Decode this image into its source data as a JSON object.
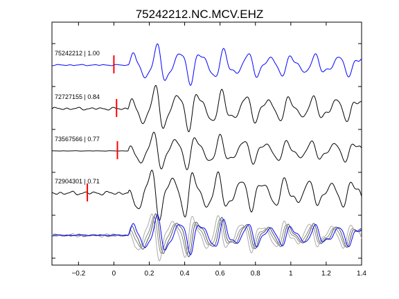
{
  "chart_data": {
    "type": "line",
    "title": "75242212.NC.MCV.EHZ",
    "xlabel": "",
    "ylabel": "",
    "xlim": [
      -0.35,
      1.4
    ],
    "xticks": [
      -0.2,
      0,
      0.2,
      0.4,
      0.6,
      0.8,
      1,
      1.2,
      1.4
    ],
    "xtick_labels": [
      "−0.2",
      "0",
      "0.2",
      "0.4",
      "0.6",
      "0.8",
      "1",
      "1.2",
      "1.4"
    ],
    "grid": false,
    "legend": "none",
    "series": [
      {
        "label": "75242212 | 1.00",
        "color": "#0000ff",
        "pick_time": 0.0,
        "noise": 0.1,
        "amplitude": 1.0,
        "phase": 0.0
      },
      {
        "label": "72727155 | 0.84",
        "color": "#000000",
        "pick_time": 0.015,
        "noise": 0.22,
        "amplitude": 1.1,
        "phase": 0.6
      },
      {
        "label": "73567566 | 0.77",
        "color": "#000000",
        "pick_time": 0.02,
        "noise": 0.03,
        "amplitude": 1.0,
        "phase": 1.2
      },
      {
        "label": "72904301 | 0.71",
        "color": "#000000",
        "pick_time": -0.15,
        "noise": 0.3,
        "amplitude": 1.25,
        "phase": 1.9
      }
    ],
    "overlay": {
      "colors": [
        "#0000ff",
        "#555555",
        "#888888",
        "#aaaaaa"
      ]
    },
    "pick_marker_color": "#ff0000"
  }
}
